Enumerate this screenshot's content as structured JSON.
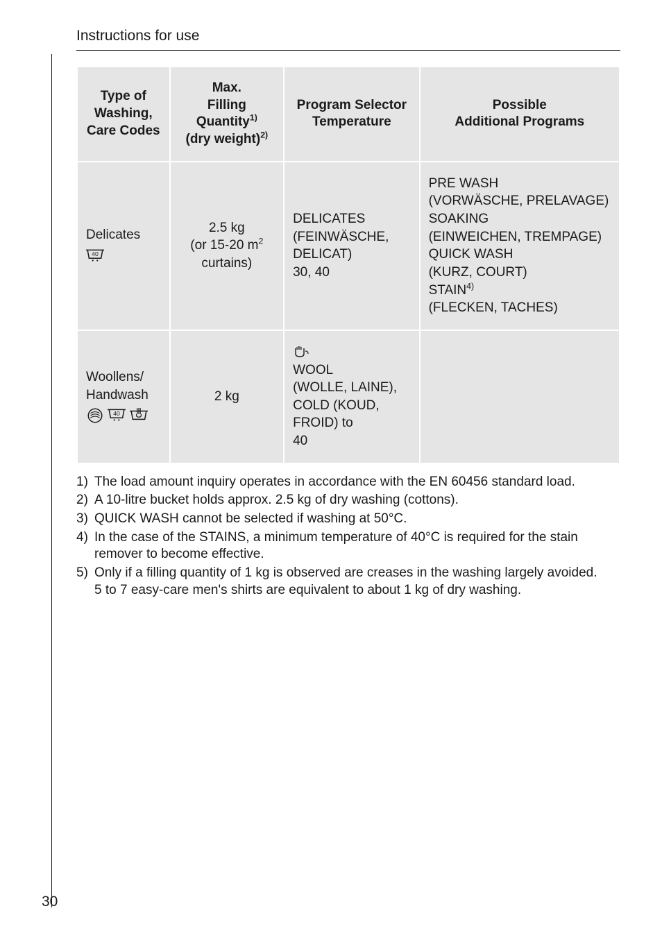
{
  "header": {
    "title": "Instructions for use"
  },
  "page_number": "30",
  "table": {
    "columns": [
      {
        "line1": "Type of",
        "line2": "Washing,",
        "line3": "Care Codes"
      },
      {
        "line1": "Max.",
        "line2_prefix": "Filling Quantity",
        "line2_sup": "1)",
        "line3_prefix": "(dry  weight)",
        "line3_sup": "2)"
      },
      {
        "line1": "Program Selector",
        "line2": "Temperature"
      },
      {
        "line1": "Possible",
        "line2": "Additional Programs"
      }
    ],
    "rows": [
      {
        "type_label": "Delicates",
        "type_glyphs": [
          "tub40dots"
        ],
        "qty_line1": "2.5 kg",
        "qty_line2_prefix": "(or 15-20 m",
        "qty_line2_sup": "2",
        "qty_line3": "curtains)",
        "selector_lines": [
          "DELICATES",
          "(FEINWÄSCHE,",
          "DELICAT)",
          "30, 40"
        ],
        "selector_leading_glyph": null,
        "addl_lines": [
          "PRE WASH",
          "(VORWÄSCHE, PRELAVAGE)",
          "SOAKING",
          "(EINWEICHEN, TREMPAGE)",
          "QUICK WASH",
          "(KURZ, COURT)"
        ],
        "addl_stain_prefix": "STAIN",
        "addl_stain_sup": "4)",
        "addl_tail": "(FLECKEN, TACHES)"
      },
      {
        "type_label": "Woollens/\nHandwash",
        "type_glyphs": [
          "wool",
          "tub40dots",
          "handwash"
        ],
        "qty_line1": "2 kg",
        "qty_line2_prefix": null,
        "qty_line2_sup": null,
        "qty_line3": null,
        "selector_lines": [
          "WOOL",
          "(WOLLE, LAINE),",
          "COLD (KOUD, FROID) to",
          "40"
        ],
        "selector_leading_glyph": "handwool",
        "addl_lines": [],
        "addl_stain_prefix": null,
        "addl_stain_sup": null,
        "addl_tail": null
      }
    ]
  },
  "footnotes": [
    {
      "num": "1)",
      "text": "The load amount inquiry operates in accordance with the EN 60456 standard load."
    },
    {
      "num": "2)",
      "text": "A 10-litre bucket holds approx. 2.5 kg of dry washing (cottons)."
    },
    {
      "num": "3)",
      "text": "QUICK WASH cannot be selected if washing at 50°C."
    },
    {
      "num": "4)",
      "text": "In the case of the STAINS, a minimum temperature of 40°C is required for the stain remover to become effective."
    },
    {
      "num": "5)",
      "text": "Only if a filling quantity of 1 kg is observed are creases in the washing largely avoided.",
      "sub": "5 to 7 easy-care men's shirts are equivalent to about 1 kg of dry washing."
    }
  ]
}
